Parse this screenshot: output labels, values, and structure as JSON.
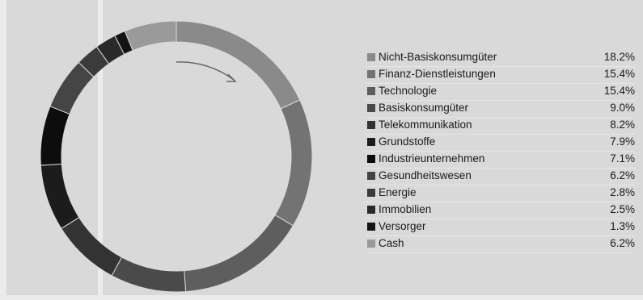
{
  "chart_data": {
    "type": "pie",
    "title": "",
    "legend_position": "right",
    "slices": [
      {
        "label": "Nicht-Basiskonsumgüter",
        "value": 18.2,
        "value_text": "18.2%",
        "color": "#8a8a8a"
      },
      {
        "label": "Finanz-Dienstleistungen",
        "value": 15.4,
        "value_text": "15.4%",
        "color": "#737373"
      },
      {
        "label": "Technologie",
        "value": 15.4,
        "value_text": "15.4%",
        "color": "#5e5e5e"
      },
      {
        "label": "Basiskonsumgüter",
        "value": 9.0,
        "value_text": "9.0%",
        "color": "#4a4a4a"
      },
      {
        "label": "Telekommunikation",
        "value": 8.2,
        "value_text": "8.2%",
        "color": "#333333"
      },
      {
        "label": "Grundstoffe",
        "value": 7.9,
        "value_text": "7.9%",
        "color": "#1c1c1c"
      },
      {
        "label": "Industrieunternehmen",
        "value": 7.1,
        "value_text": "7.1%",
        "color": "#0d0d0d"
      },
      {
        "label": "Gesundheitswesen",
        "value": 6.2,
        "value_text": "6.2%",
        "color": "#454545"
      },
      {
        "label": "Energie",
        "value": 2.8,
        "value_text": "2.8%",
        "color": "#3b3b3b"
      },
      {
        "label": "Immobilien",
        "value": 2.5,
        "value_text": "2.5%",
        "color": "#2a2a2a"
      },
      {
        "label": "Versorger",
        "value": 1.3,
        "value_text": "1.3%",
        "color": "#141414"
      },
      {
        "label": "Cash",
        "value": 6.2,
        "value_text": "6.2%",
        "color": "#9a9a9a"
      }
    ]
  }
}
